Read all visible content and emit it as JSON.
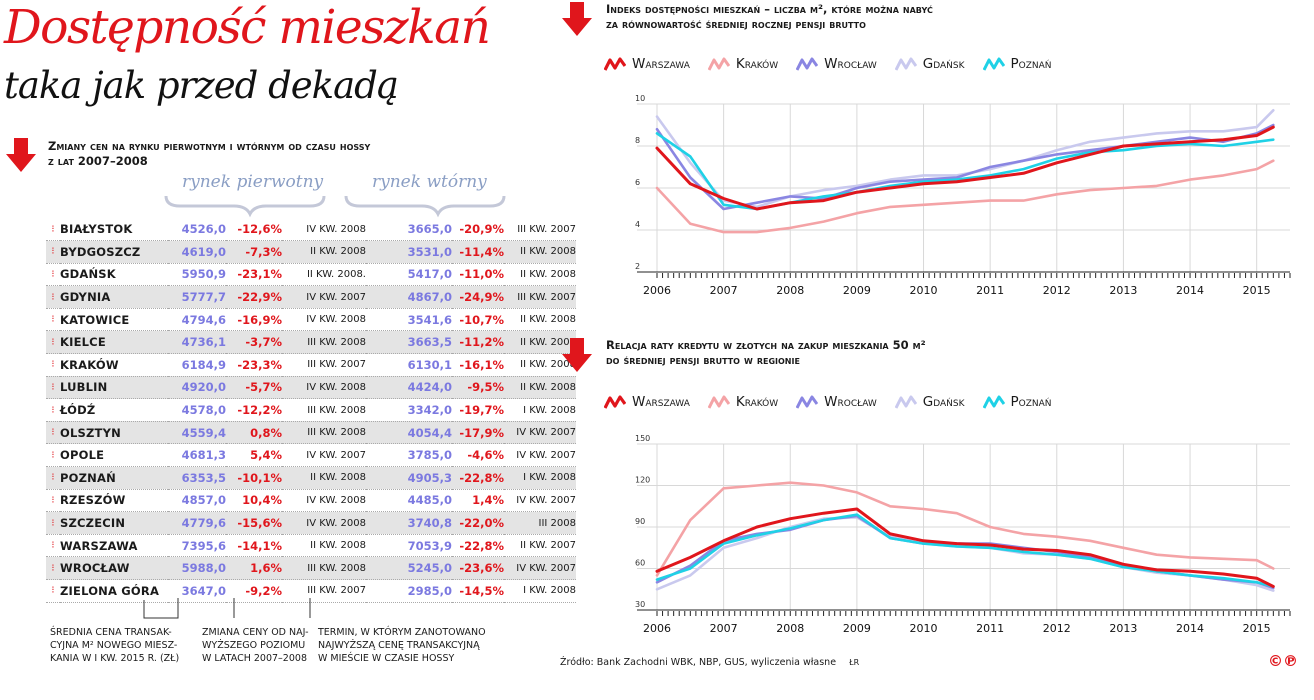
{
  "title": "Dostępność mieszkań",
  "subtitle": "taka jak przed dekadą",
  "table_section": {
    "heading_line1": "Zmiany cen na rynku pierwotnym i wtórnym od czasu hossy",
    "heading_line2": "z lat 2007–2008",
    "group_primary": "rynek pierwotny",
    "group_secondary": "rynek wtórny",
    "rows": [
      {
        "city": "BIAŁYSTOK",
        "p1": "4526,0",
        "d1": "-12,6%",
        "t1": "IV KW. 2008",
        "p2": "3665,0",
        "d2": "-20,9%",
        "t2": "III KW. 2007"
      },
      {
        "city": "BYDGOSZCZ",
        "p1": "4619,0",
        "d1": "-7,3%",
        "t1": "II KW. 2008",
        "p2": "3531,0",
        "d2": "-11,4%",
        "t2": "II KW. 2008"
      },
      {
        "city": "GDAŃSK",
        "p1": "5950,9",
        "d1": "-23,1%",
        "t1": "II KW. 2008.",
        "p2": "5417,0",
        "d2": "-11,0%",
        "t2": "II KW. 2008"
      },
      {
        "city": "GDYNIA",
        "p1": "5777,7",
        "d1": "-22,9%",
        "t1": "IV KW. 2007",
        "p2": "4867,0",
        "d2": "-24,9%",
        "t2": "III KW. 2007"
      },
      {
        "city": "KATOWICE",
        "p1": "4794,6",
        "d1": "-16,9%",
        "t1": "IV KW. 2008",
        "p2": "3541,6",
        "d2": "-10,7%",
        "t2": "II KW. 2008"
      },
      {
        "city": "KIELCE",
        "p1": "4736,1",
        "d1": "-3,7%",
        "t1": "III KW. 2008",
        "p2": "3663,5",
        "d2": "-11,2%",
        "t2": "II KW. 2008"
      },
      {
        "city": "KRAKÓW",
        "p1": "6184,9",
        "d1": "-23,3%",
        "t1": "III KW. 2007",
        "p2": "6130,1",
        "d2": "-16,1%",
        "t2": "II KW. 2008"
      },
      {
        "city": "LUBLIN",
        "p1": "4920,0",
        "d1": "-5,7%",
        "t1": "IV KW. 2008",
        "p2": "4424,0",
        "d2": "-9,5%",
        "t2": "II KW. 2008"
      },
      {
        "city": "ŁÓDŹ",
        "p1": "4578,0",
        "d1": "-12,2%",
        "t1": "III KW. 2008",
        "p2": "3342,0",
        "d2": "-19,7%",
        "t2": "I KW. 2008"
      },
      {
        "city": "OLSZTYN",
        "p1": "4559,4",
        "d1": "0,8%",
        "t1": "III KW. 2008",
        "p2": "4054,4",
        "d2": "-17,9%",
        "t2": "IV KW. 2007"
      },
      {
        "city": "OPOLE",
        "p1": "4681,3",
        "d1": "5,4%",
        "t1": "IV KW. 2007",
        "p2": "3785,0",
        "d2": "-4,6%",
        "t2": "IV KW. 2007"
      },
      {
        "city": "POZNAŃ",
        "p1": "6353,5",
        "d1": "-10,1%",
        "t1": "II KW. 2008",
        "p2": "4905,3",
        "d2": "-22,8%",
        "t2": "I KW. 2008"
      },
      {
        "city": "RZESZÓW",
        "p1": "4857,0",
        "d1": "10,4%",
        "t1": "IV KW. 2008",
        "p2": "4485,0",
        "d2": "1,4%",
        "t2": "IV KW. 2007"
      },
      {
        "city": "SZCZECIN",
        "p1": "4779,6",
        "d1": "-15,6%",
        "t1": "IV KW. 2008",
        "p2": "3740,8",
        "d2": "-22,0%",
        "t2": "III 2008"
      },
      {
        "city": "WARSZAWA",
        "p1": "7395,6",
        "d1": "-14,1%",
        "t1": "II KW. 2008",
        "p2": "7053,9",
        "d2": "-22,8%",
        "t2": "II KW. 2007"
      },
      {
        "city": "WROCŁAW",
        "p1": "5988,0",
        "d1": "1,6%",
        "t1": "III KW. 2008",
        "p2": "5245,0",
        "d2": "-23,6%",
        "t2": "IV KW. 2007"
      },
      {
        "city": "ZIELONA GÓRA",
        "p1": "3647,0",
        "d1": "-9,2%",
        "t1": "III KW. 2007",
        "p2": "2985,0",
        "d2": "-14,5%",
        "t2": "I KW. 2008"
      }
    ],
    "notes": [
      {
        "line1": "ŚREDNIA CENA TRANSAK-",
        "line2": "CYJNA M² NOWEGO MIESZ-",
        "line3": "KANIA W I KW. 2015 R. (ZŁ)"
      },
      {
        "line1": "ZMIANA CENY OD NAJ-",
        "line2": "WYŻSZEGO POZIOMU",
        "line3": "W LATACH 2007–2008"
      },
      {
        "line1": "TERMIN, W KTÓRYM ZANOTOWANO",
        "line2": "NAJWYŻSZĄ CENĘ TRANSAKCYJNĄ",
        "line3": "W MIEŚCIE W CZASIE HOSSY"
      }
    ]
  },
  "chart1_heading": {
    "line1": "Indeks dostępności mieszkań – liczba m², które można nabyć",
    "line2": "za równowartość średniej rocznej pensji brutto"
  },
  "chart2_heading": {
    "line1": "Relacja raty kredytu w złotych na zakup mieszkania 50 m²",
    "line2": "do średniej pensji brutto w regionie"
  },
  "legend": [
    {
      "name": "Warszawa",
      "color": "#e0161c"
    },
    {
      "name": "Kraków",
      "color": "#f4a3a6"
    },
    {
      "name": "Wrocław",
      "color": "#8a86e2"
    },
    {
      "name": "Gdańsk",
      "color": "#c9c9ee"
    },
    {
      "name": "Poznań",
      "color": "#1fd1e6"
    }
  ],
  "source": "Źródło: Bank Zachodni WBK, NBP, GUS, wyliczenia własne",
  "author": "ŁR",
  "logo": "©℗",
  "chart_data": [
    {
      "type": "line",
      "x_labels": [
        "2006",
        "2007",
        "2008",
        "2009",
        "2010",
        "2011",
        "2012",
        "2013",
        "2014",
        "2015"
      ],
      "x": [
        2006.0,
        2006.5,
        2007.0,
        2007.5,
        2008.0,
        2008.5,
        2009.0,
        2009.5,
        2010.0,
        2010.5,
        2011.0,
        2011.5,
        2012.0,
        2012.5,
        2013.0,
        2013.5,
        2014.0,
        2014.5,
        2015.0,
        2015.25
      ],
      "ylim": [
        2,
        10
      ],
      "yticks": [
        "2",
        "4",
        "6",
        "8",
        "10"
      ],
      "series": [
        {
          "name": "Warszawa",
          "values": [
            7.9,
            6.2,
            5.5,
            5.0,
            5.3,
            5.4,
            5.8,
            6.0,
            6.2,
            6.3,
            6.5,
            6.7,
            7.2,
            7.6,
            8.0,
            8.1,
            8.2,
            8.3,
            8.5,
            8.9
          ]
        },
        {
          "name": "Kraków",
          "values": [
            6.0,
            4.3,
            3.9,
            3.9,
            4.1,
            4.4,
            4.8,
            5.1,
            5.2,
            5.3,
            5.4,
            5.4,
            5.7,
            5.9,
            6.0,
            6.1,
            6.4,
            6.6,
            6.9,
            7.3
          ]
        },
        {
          "name": "Wrocław",
          "values": [
            8.8,
            6.5,
            5.0,
            5.3,
            5.6,
            5.5,
            6.0,
            6.3,
            6.4,
            6.5,
            7.0,
            7.3,
            7.6,
            7.8,
            8.0,
            8.2,
            8.4,
            8.2,
            8.6,
            9.0
          ]
        },
        {
          "name": "Gdańsk",
          "values": [
            9.4,
            7.2,
            5.4,
            5.1,
            5.6,
            5.9,
            6.1,
            6.4,
            6.6,
            6.6,
            6.9,
            7.3,
            7.8,
            8.2,
            8.4,
            8.6,
            8.7,
            8.7,
            8.9,
            9.7
          ]
        },
        {
          "name": "Poznań",
          "values": [
            8.6,
            7.5,
            5.2,
            5.0,
            5.3,
            5.6,
            5.8,
            6.1,
            6.3,
            6.4,
            6.6,
            6.9,
            7.4,
            7.7,
            7.8,
            8.0,
            8.1,
            8.0,
            8.2,
            8.3
          ]
        }
      ]
    },
    {
      "type": "line",
      "x_labels": [
        "2006",
        "2007",
        "2008",
        "2009",
        "2010",
        "2011",
        "2012",
        "2013",
        "2014",
        "2015"
      ],
      "x": [
        2006.0,
        2006.5,
        2007.0,
        2007.5,
        2008.0,
        2008.5,
        2009.0,
        2009.5,
        2010.0,
        2010.5,
        2011.0,
        2011.5,
        2012.0,
        2012.5,
        2013.0,
        2013.5,
        2014.0,
        2014.5,
        2015.0,
        2015.25
      ],
      "ylim": [
        30,
        150
      ],
      "yticks": [
        "30",
        "60",
        "90",
        "120",
        "150"
      ],
      "series": [
        {
          "name": "Warszawa",
          "values": [
            58,
            68,
            80,
            90,
            96,
            100,
            103,
            85,
            80,
            78,
            77,
            74,
            73,
            70,
            63,
            59,
            58,
            56,
            53,
            47
          ]
        },
        {
          "name": "Kraków",
          "values": [
            55,
            95,
            118,
            120,
            122,
            120,
            115,
            105,
            103,
            100,
            90,
            85,
            83,
            80,
            75,
            70,
            68,
            67,
            66,
            60
          ]
        },
        {
          "name": "Wrocław",
          "values": [
            50,
            62,
            80,
            85,
            88,
            95,
            98,
            82,
            78,
            78,
            78,
            75,
            72,
            68,
            62,
            58,
            55,
            52,
            50,
            46
          ]
        },
        {
          "name": "Gdańsk",
          "values": [
            45,
            55,
            75,
            82,
            90,
            96,
            97,
            83,
            78,
            76,
            75,
            71,
            70,
            67,
            61,
            57,
            55,
            52,
            48,
            44
          ]
        },
        {
          "name": "Poznań",
          "values": [
            52,
            60,
            78,
            84,
            89,
            95,
            99,
            82,
            78,
            76,
            75,
            72,
            70,
            67,
            61,
            58,
            55,
            53,
            50,
            47
          ]
        }
      ]
    }
  ]
}
